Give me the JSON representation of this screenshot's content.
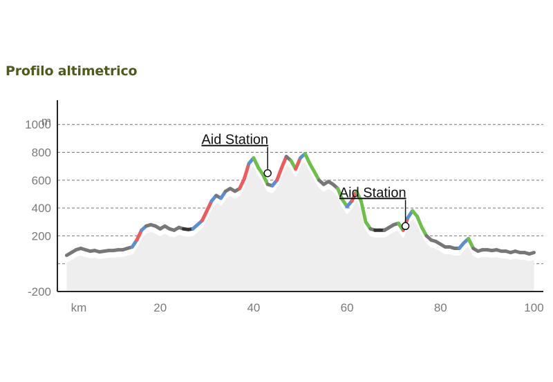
{
  "title": "Profilo altimetrico",
  "chart_data": {
    "type": "area",
    "title": "Profilo altimetrico",
    "xlabel": "km",
    "ylabel": "m",
    "xlim": [
      -2,
      102
    ],
    "ylim": [
      -200,
      1150
    ],
    "y_ticks": [
      -200,
      200,
      400,
      600,
      800,
      1000
    ],
    "x_ticks": [
      20,
      40,
      60,
      80,
      100
    ],
    "y_unit_label": "m",
    "x_unit_label": "km",
    "grid": "horizontal dashed",
    "colors": {
      "line_default": "#777777",
      "uphill": "#5a8fd6",
      "steep": "#f05a5a",
      "downhill": "#6cc04a",
      "flat": "#333333",
      "fill": "#eeeeee",
      "title": "#4f5a1e"
    },
    "series": [
      {
        "x": [
          0,
          1,
          2,
          3,
          4,
          5,
          6,
          7,
          8,
          9,
          10,
          11,
          12,
          13,
          14,
          15,
          16,
          17,
          18,
          19,
          20,
          21,
          22,
          23,
          24,
          25,
          26,
          27,
          28,
          29,
          30,
          31,
          32,
          33,
          34,
          35,
          36,
          37,
          38,
          39,
          40,
          41,
          42,
          43,
          44,
          45,
          46,
          47,
          48,
          49,
          50,
          51,
          52,
          53,
          54,
          55,
          56,
          57,
          58,
          59,
          60,
          61,
          62,
          63,
          64,
          65,
          66,
          67,
          68,
          69,
          70,
          71,
          72,
          73,
          74,
          75,
          76,
          77,
          78,
          79,
          80,
          81,
          82,
          83,
          84,
          85,
          86,
          87,
          88,
          89,
          90,
          91,
          92,
          93,
          94,
          95,
          96,
          97,
          98,
          99,
          100
        ],
        "y": [
          60,
          80,
          100,
          110,
          100,
          90,
          95,
          85,
          90,
          95,
          95,
          100,
          100,
          110,
          120,
          170,
          240,
          270,
          280,
          270,
          250,
          270,
          250,
          240,
          260,
          250,
          245,
          250,
          280,
          310,
          380,
          450,
          490,
          470,
          520,
          540,
          520,
          540,
          610,
          720,
          760,
          690,
          640,
          570,
          560,
          600,
          690,
          770,
          740,
          680,
          760,
          790,
          720,
          660,
          600,
          570,
          590,
          570,
          540,
          460,
          410,
          450,
          520,
          450,
          300,
          250,
          240,
          240,
          240,
          260,
          280,
          290,
          240,
          330,
          380,
          340,
          260,
          200,
          170,
          160,
          140,
          120,
          120,
          110,
          110,
          150,
          180,
          110,
          90,
          100,
          100,
          95,
          100,
          90,
          90,
          80,
          90,
          80,
          80,
          70,
          80
        ]
      }
    ],
    "annotations": [
      {
        "text": "Aid Station",
        "x": 43,
        "y": 650
      },
      {
        "text": "Aid Station",
        "x": 72.5,
        "y": 270
      }
    ]
  }
}
